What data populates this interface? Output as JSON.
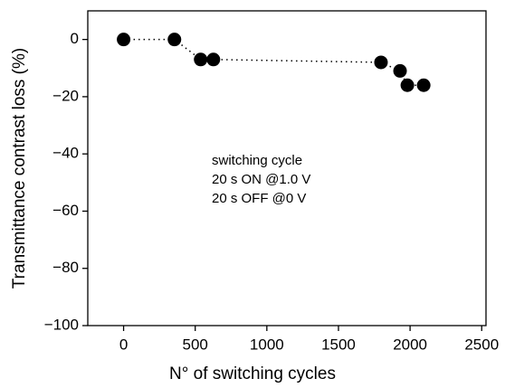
{
  "chart_data": {
    "type": "scatter",
    "x_label": "N° of switching cycles",
    "y_label": "Transmittance contrast loss (%)",
    "annotation": [
      "switching cycle",
      "20 s ON @1.0 V",
      "20 s OFF @0 V"
    ],
    "x": [
      0,
      355,
      538,
      627,
      1797,
      1930,
      1981,
      2095
    ],
    "series": [
      {
        "color": "#000000",
        "values": [
          0,
          0,
          -7,
          -7,
          -8,
          -11,
          -16,
          -16
        ]
      }
    ],
    "connect": "dotted",
    "xlim": [
      -250,
      2530
    ],
    "ylim": [
      -100,
      10
    ],
    "xticks": [
      0,
      500,
      1000,
      1500,
      2000,
      2500
    ],
    "yticks": [
      {
        "value": -100,
        "label": "−100"
      },
      {
        "value": -80,
        "label": "−80"
      },
      {
        "value": -60,
        "label": "−60"
      },
      {
        "value": -40,
        "label": "−40"
      },
      {
        "value": -20,
        "label": "−20"
      },
      0
    ]
  }
}
